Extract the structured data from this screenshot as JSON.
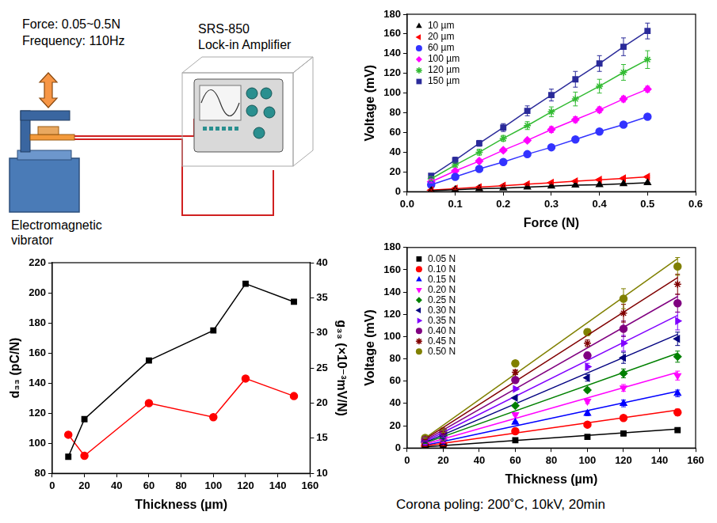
{
  "diagram": {
    "force_label": "Force: 0.05~0.5N",
    "frequency_label": "Frequency: 110Hz",
    "instrument": [
      "SRS-850",
      "Lock-in Amplifier"
    ],
    "vibrator": [
      "Electromagnetic",
      "vibrator"
    ]
  },
  "chart_data": [
    {
      "type": "line",
      "xlabel": "Force (N)",
      "ylabel": "Voltage (mV)",
      "x": [
        0.05,
        0.1,
        0.15,
        0.2,
        0.25,
        0.3,
        0.35,
        0.4,
        0.45,
        0.5
      ],
      "xlim": [
        0,
        0.6
      ],
      "xticks": [
        {
          "value": 0,
          "label": "0.0"
        },
        0.1,
        0.2,
        0.3,
        0.4,
        0.5,
        0.6
      ],
      "ylim": [
        0,
        180
      ],
      "yticks": [
        0,
        20,
        40,
        60,
        80,
        100,
        120,
        140,
        160,
        180
      ],
      "grid": false,
      "legend": "upper left",
      "series": [
        {
          "name": "10 µm",
          "color": "#000000",
          "marker": "triangle",
          "line_style": "solid",
          "values": [
            1,
            2,
            3,
            3.5,
            4.5,
            5.5,
            6.5,
            7,
            8,
            9
          ],
          "errors": [
            0.5,
            0.5,
            0.5,
            0.5,
            0.5,
            0.5,
            0.5,
            0.5,
            0.5,
            0.5
          ]
        },
        {
          "name": "20 µm",
          "color": "#ff0000",
          "marker": "triangle-left",
          "line_style": "solid",
          "values": [
            1.5,
            3,
            4.5,
            6,
            7.5,
            9,
            10.5,
            12,
            13.5,
            15
          ],
          "errors": [
            1,
            1,
            1,
            1,
            1,
            1,
            1,
            1,
            1,
            1
          ]
        },
        {
          "name": "60 µm",
          "color": "#3333ff",
          "marker": "circle",
          "line_style": "solid",
          "values": [
            7,
            15,
            23,
            30,
            38,
            45,
            53,
            61,
            68,
            76
          ],
          "errors": [
            1,
            1,
            1,
            1,
            1,
            1,
            1,
            1,
            2,
            2
          ]
        },
        {
          "name": "100 µm",
          "color": "#ff00ff",
          "marker": "diamond",
          "line_style": "solid",
          "values": [
            10,
            21,
            31,
            42,
            52,
            63,
            73,
            83,
            94,
            104
          ],
          "errors": [
            1,
            1,
            2,
            2,
            2,
            3,
            3,
            3,
            3,
            3
          ]
        },
        {
          "name": "120 µm",
          "color": "#33bb33",
          "marker": "star",
          "line_style": "solid",
          "values": [
            13,
            27,
            40,
            54,
            67,
            81,
            94,
            107,
            121,
            134
          ],
          "errors": [
            2,
            2,
            3,
            3,
            4,
            5,
            7,
            7,
            8,
            9
          ]
        },
        {
          "name": "150 µm",
          "color": "#2b2b9a",
          "marker": "square",
          "line_style": "solid",
          "values": [
            16,
            32,
            49,
            65,
            82,
            98,
            114,
            130,
            147,
            163
          ],
          "errors": [
            2,
            3,
            3,
            4,
            5,
            6,
            8,
            8,
            9,
            8
          ]
        }
      ]
    },
    {
      "type": "line",
      "xlabel": "Thickness (µm)",
      "ylabel": "d₃₃ (pC/N)",
      "y2label": "g₃₃ (×10⁻³mV/N)",
      "x": [
        10,
        20,
        60,
        100,
        120,
        150
      ],
      "xlim": [
        0,
        160
      ],
      "xticks": [
        0,
        20,
        40,
        60,
        80,
        100,
        120,
        140,
        160
      ],
      "ylim": [
        80,
        220
      ],
      "yticks": [
        80,
        100,
        120,
        140,
        160,
        180,
        200,
        220
      ],
      "y2lim": [
        10,
        40
      ],
      "y2ticks": [
        10,
        15,
        20,
        25,
        30,
        35,
        40
      ],
      "grid": false,
      "series": [
        {
          "color": "#000000",
          "marker": "square",
          "line_style": "solid",
          "values": [
            91,
            116,
            155,
            175,
            206,
            194
          ]
        },
        {
          "color": "#ff0000",
          "marker": "circle",
          "line_style": "solid",
          "axis": "y2",
          "values": [
            15.5,
            12.5,
            20,
            18,
            23.5,
            21
          ]
        }
      ]
    },
    {
      "type": "scatter",
      "xlabel": "Thickness (µm)",
      "ylabel": "Voltage (mV)",
      "x": [
        10,
        20,
        60,
        100,
        120,
        150
      ],
      "fit_x": [
        10,
        150
      ],
      "xlim": [
        0,
        160
      ],
      "xticks": [
        0,
        20,
        40,
        60,
        80,
        100,
        120,
        140,
        160
      ],
      "ylim": [
        0,
        180
      ],
      "yticks": [
        0,
        20,
        40,
        60,
        80,
        100,
        120,
        140,
        160,
        180
      ],
      "grid": false,
      "legend": "upper left",
      "series": [
        {
          "name": "0.05 N",
          "color": "#000000",
          "marker": "square",
          "line_style": "none",
          "values": [
            1,
            1.5,
            7,
            10,
            13,
            16
          ],
          "errors": [
            0.5,
            1,
            1,
            1,
            2,
            2
          ],
          "fit": [
            1,
            17
          ]
        },
        {
          "name": "0.10 N",
          "color": "#ff0000",
          "marker": "circle",
          "line_style": "none",
          "values": [
            2,
            3,
            15,
            21,
            27,
            32
          ],
          "errors": [
            0.5,
            1,
            1,
            1,
            2,
            3
          ],
          "fit": [
            2,
            34
          ]
        },
        {
          "name": "0.15 N",
          "color": "#0000ff",
          "marker": "triangle",
          "line_style": "none",
          "values": [
            3,
            4.5,
            23,
            31,
            40,
            49
          ],
          "errors": [
            0.5,
            1,
            1,
            2,
            3,
            3
          ],
          "fit": [
            2.5,
            51
          ]
        },
        {
          "name": "0.20 N",
          "color": "#ff00ff",
          "marker": "triangle-down",
          "line_style": "none",
          "values": [
            3.5,
            6,
            30,
            42,
            54,
            65
          ],
          "errors": [
            0.5,
            1,
            1,
            2,
            3,
            4
          ],
          "fit": [
            3.5,
            68
          ]
        },
        {
          "name": "0.25 N",
          "color": "#008000",
          "marker": "diamond",
          "line_style": "none",
          "values": [
            4.5,
            7.5,
            38,
            52,
            67,
            82
          ],
          "errors": [
            0.5,
            1,
            1,
            2,
            4,
            5
          ],
          "fit": [
            4.5,
            85
          ]
        },
        {
          "name": "0.30 N",
          "color": "#000080",
          "marker": "triangle-left",
          "line_style": "none",
          "values": [
            5.5,
            9,
            45,
            63,
            81,
            98
          ],
          "errors": [
            0.5,
            1,
            1,
            3,
            5,
            6
          ],
          "fit": [
            5,
            102
          ]
        },
        {
          "name": "0.35 N",
          "color": "#8000ff",
          "marker": "triangle-right",
          "line_style": "none",
          "values": [
            6.5,
            10.5,
            53,
            73,
            94,
            114
          ],
          "errors": [
            0.5,
            1,
            1,
            3,
            7,
            8
          ],
          "fit": [
            6,
            119
          ]
        },
        {
          "name": "0.40 N",
          "color": "#800080",
          "marker": "circle",
          "line_style": "none",
          "values": [
            7,
            12,
            61,
            83,
            107,
            130
          ],
          "errors": [
            0.5,
            1,
            1,
            3,
            7,
            8
          ],
          "fit": [
            7,
            136
          ]
        },
        {
          "name": "0.45 N",
          "color": "#800000",
          "marker": "star",
          "line_style": "none",
          "values": [
            8,
            13.5,
            68,
            94,
            121,
            147
          ],
          "errors": [
            0.5,
            1,
            2,
            3,
            8,
            9
          ],
          "fit": [
            8,
            153
          ]
        },
        {
          "name": "0.50 N",
          "color": "#808000",
          "marker": "circle",
          "line_style": "none",
          "values": [
            9,
            15,
            76,
            104,
            134,
            163
          ],
          "errors": [
            0.5,
            1,
            2,
            3,
            9,
            8
          ],
          "fit": [
            9,
            170
          ]
        }
      ]
    }
  ],
  "caption": "Corona poling: 200˚C, 10kV, 20min"
}
